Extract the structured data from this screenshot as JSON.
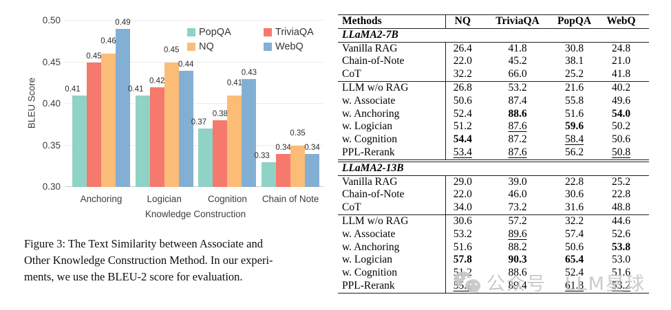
{
  "chart_data": {
    "type": "bar",
    "title": "",
    "xlabel": "Knowledge Construction",
    "ylabel": "BLEU Score",
    "ylim": [
      0.3,
      0.5
    ],
    "yticks": [
      0.3,
      0.35,
      0.4,
      0.45,
      0.5
    ],
    "grid": true,
    "legend_position": "top-right",
    "categories": [
      "Anchoring",
      "Logician",
      "Cognition",
      "Chain of Note"
    ],
    "series": [
      {
        "name": "PopQA",
        "color": "#8FD2C6",
        "values": [
          0.41,
          0.41,
          0.37,
          0.33
        ]
      },
      {
        "name": "TriviaQA",
        "color": "#F5796C",
        "values": [
          0.45,
          0.42,
          0.38,
          0.34
        ]
      },
      {
        "name": "NQ",
        "color": "#FBBC78",
        "values": [
          0.46,
          0.45,
          0.41,
          0.35
        ]
      },
      {
        "name": "WebQ",
        "color": "#83AFD4",
        "values": [
          0.49,
          0.44,
          0.43,
          0.34
        ]
      }
    ]
  },
  "caption": {
    "lines": [
      "Figure 3: The Text Similarity between Associate and",
      "Other Knowledge Construction Method. In our experi-",
      "ments, we use the BLEU-2 score for evaluation."
    ]
  },
  "table": {
    "headers": [
      "Methods",
      "NQ",
      "TriviaQA",
      "PopQA",
      "WebQ"
    ],
    "sections": [
      {
        "title": "LLaMA2-7B",
        "groups": [
          [
            {
              "method": "Vanilla RAG",
              "values": [
                "26.4",
                "41.8",
                "30.8",
                "24.8"
              ],
              "styles": [
                "",
                "",
                "",
                ""
              ]
            },
            {
              "method": "Chain-of-Note",
              "values": [
                "22.0",
                "45.2",
                "38.1",
                "21.0"
              ],
              "styles": [
                "",
                "",
                "",
                ""
              ]
            },
            {
              "method": "CoT",
              "values": [
                "32.2",
                "66.0",
                "25.2",
                "41.8"
              ],
              "styles": [
                "",
                "",
                "",
                ""
              ]
            }
          ],
          [
            {
              "method": "LLM w/o RAG",
              "values": [
                "26.8",
                "53.2",
                "21.6",
                "40.2"
              ],
              "styles": [
                "",
                "",
                "",
                ""
              ]
            },
            {
              "method": "w. Associate",
              "values": [
                "50.6",
                "87.4",
                "55.8",
                "49.6"
              ],
              "styles": [
                "",
                "",
                "",
                ""
              ]
            },
            {
              "method": "w. Anchoring",
              "values": [
                "52.4",
                "88.6",
                "51.6",
                "54.0"
              ],
              "styles": [
                "",
                "b",
                "",
                "b"
              ]
            },
            {
              "method": "w. Logician",
              "values": [
                "51.2",
                "87.6",
                "59.6",
                "50.2"
              ],
              "styles": [
                "",
                "u",
                "b",
                ""
              ]
            },
            {
              "method": "w. Cognition",
              "values": [
                "54.4",
                "87.2",
                "58.4",
                "50.6"
              ],
              "styles": [
                "b",
                "",
                "u",
                ""
              ]
            },
            {
              "method": "PPL-Rerank",
              "values": [
                "53.4",
                "87.6",
                "56.2",
                "50.8"
              ],
              "styles": [
                "u",
                "u",
                "",
                "u"
              ]
            }
          ]
        ]
      },
      {
        "title": "LLaMA2-13B",
        "groups": [
          [
            {
              "method": "Vanilla RAG",
              "values": [
                "29.0",
                "39.0",
                "22.8",
                "25.2"
              ],
              "styles": [
                "",
                "",
                "",
                ""
              ]
            },
            {
              "method": "Chain-of-Note",
              "values": [
                "22.0",
                "46.0",
                "30.6",
                "22.8"
              ],
              "styles": [
                "",
                "",
                "",
                ""
              ]
            },
            {
              "method": "CoT",
              "values": [
                "34.0",
                "73.2",
                "31.6",
                "48.8"
              ],
              "styles": [
                "",
                "",
                "",
                ""
              ]
            }
          ],
          [
            {
              "method": "LLM w/o RAG",
              "values": [
                "30.6",
                "57.2",
                "32.2",
                "44.6"
              ],
              "styles": [
                "",
                "",
                "",
                ""
              ]
            },
            {
              "method": "w. Associate",
              "values": [
                "53.2",
                "89.6",
                "57.4",
                "52.6"
              ],
              "styles": [
                "",
                "u",
                "",
                ""
              ]
            },
            {
              "method": "w. Anchoring",
              "values": [
                "51.6",
                "88.2",
                "50.6",
                "53.8"
              ],
              "styles": [
                "",
                "",
                "",
                "b"
              ]
            },
            {
              "method": "w. Logician",
              "values": [
                "57.8",
                "90.3",
                "65.4",
                "53.0"
              ],
              "styles": [
                "b",
                "b",
                "b",
                ""
              ]
            },
            {
              "method": "w. Cognition",
              "values": [
                "51.2",
                "88.6",
                "52.4",
                "51.6"
              ],
              "styles": [
                "",
                "",
                "",
                ""
              ]
            },
            {
              "method": "PPL-Rerank",
              "values": [
                "55.2",
                "89.4",
                "61.8",
                "53.2"
              ],
              "styles": [
                "u",
                "",
                "u",
                "u"
              ]
            }
          ]
        ]
      }
    ]
  },
  "watermark": {
    "icon": "wechat-icon",
    "text": "公众号 LLM星球",
    "color": "#c6c6c6"
  }
}
